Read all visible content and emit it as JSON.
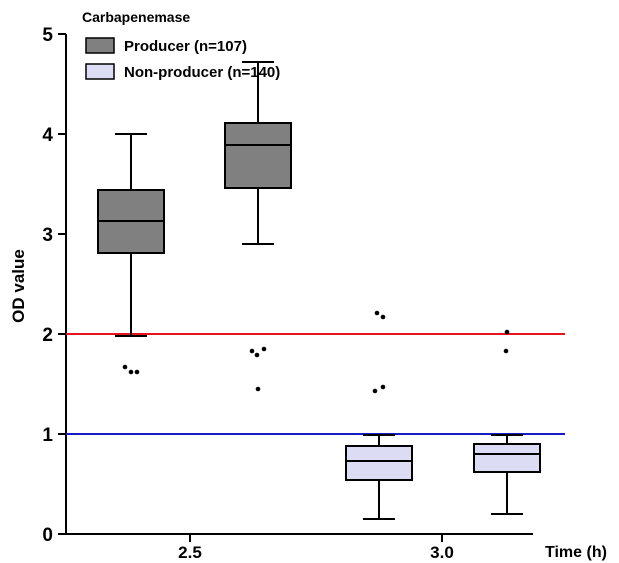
{
  "chart_data": {
    "type": "box",
    "title": "",
    "ylabel": "OD value",
    "xlabel": "Time (h)",
    "ylim": [
      0,
      5
    ],
    "yticks": [
      "0",
      "1",
      "2",
      "3",
      "4",
      "5"
    ],
    "categories": [
      "2.5",
      "3.0"
    ],
    "legend": {
      "title": "Carbapenemase",
      "position": "top-left"
    },
    "reference_lines": [
      {
        "y": 2,
        "color": "#e8141c"
      },
      {
        "y": 1,
        "color": "#1a1ac8"
      }
    ],
    "series": [
      {
        "name": "Producer (n=107)",
        "fill": "#808080",
        "boxes": [
          {
            "whisker_low": 1.98,
            "q1": 2.81,
            "median": 3.13,
            "q3": 3.44,
            "whisker_high": 4.0,
            "outliers": [
              1.67,
              1.62,
              1.62
            ]
          },
          {
            "whisker_low": 2.9,
            "q1": 3.46,
            "median": 3.89,
            "q3": 4.11,
            "whisker_high": 4.72,
            "outliers": [
              1.83,
              1.79,
              1.85,
              1.45
            ]
          }
        ]
      },
      {
        "name": "Non-producer (n=140)",
        "fill": "#dcdcf5",
        "boxes": [
          {
            "whisker_low": 0.15,
            "q1": 0.54,
            "median": 0.73,
            "q3": 0.88,
            "whisker_high": 0.99,
            "outliers": [
              2.21,
              2.17,
              1.43,
              1.47
            ]
          },
          {
            "whisker_low": 0.2,
            "q1": 0.62,
            "median": 0.8,
            "q3": 0.9,
            "whisker_high": 0.99,
            "outliers": [
              2.02,
              1.83
            ]
          }
        ]
      }
    ]
  }
}
